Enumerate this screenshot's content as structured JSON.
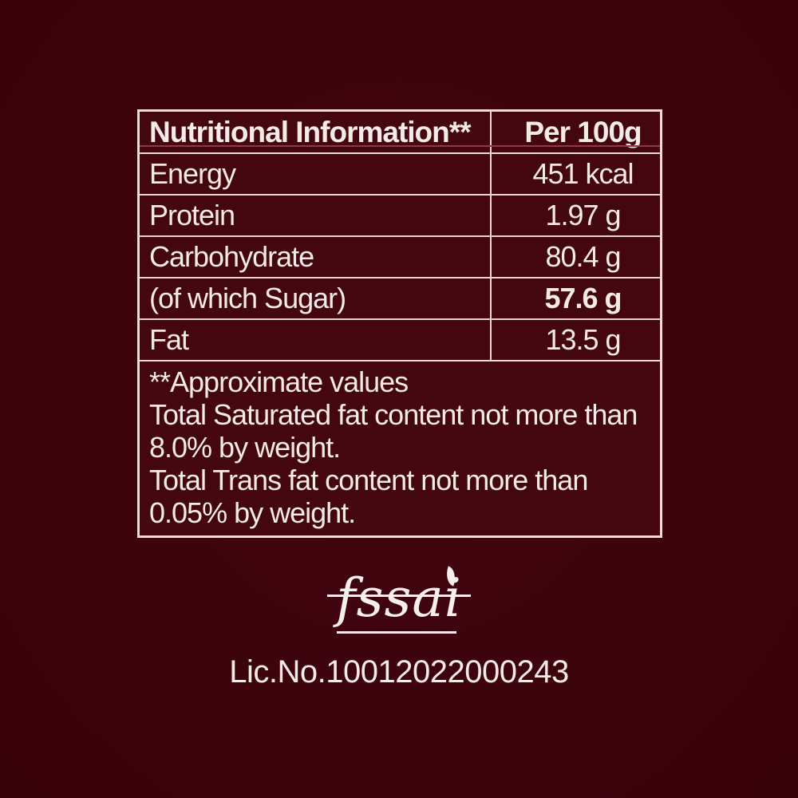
{
  "palette": {
    "background": "#3c030c",
    "table_background": "#44060f",
    "border_color": "#efdcd8",
    "accent_line_color": "#8e3a41",
    "text_color": "#f4ebe7"
  },
  "nutrition_table": {
    "header": {
      "title": "Nutritional Information**",
      "column_label": "Per 100g"
    },
    "rows": [
      {
        "label": "Energy",
        "value": "451 kcal",
        "bold_value": false
      },
      {
        "label": "Protein",
        "value": "1.97 g",
        "bold_value": false
      },
      {
        "label": "Carbohydrate",
        "value": "80.4 g",
        "bold_value": false
      },
      {
        "label": "(of which Sugar)",
        "value": "57.6 g",
        "bold_value": true
      },
      {
        "label": "Fat",
        "value": "13.5 g",
        "bold_value": false
      }
    ],
    "notes": [
      "**Approximate values",
      "Total Saturated fat content not more than",
      "8.0% by weight.",
      "Total Trans fat content not more than",
      "0.05% by weight."
    ]
  },
  "certification": {
    "fssai_logo_text": "fssai",
    "license_number": "Lic.No.10012022000243"
  }
}
